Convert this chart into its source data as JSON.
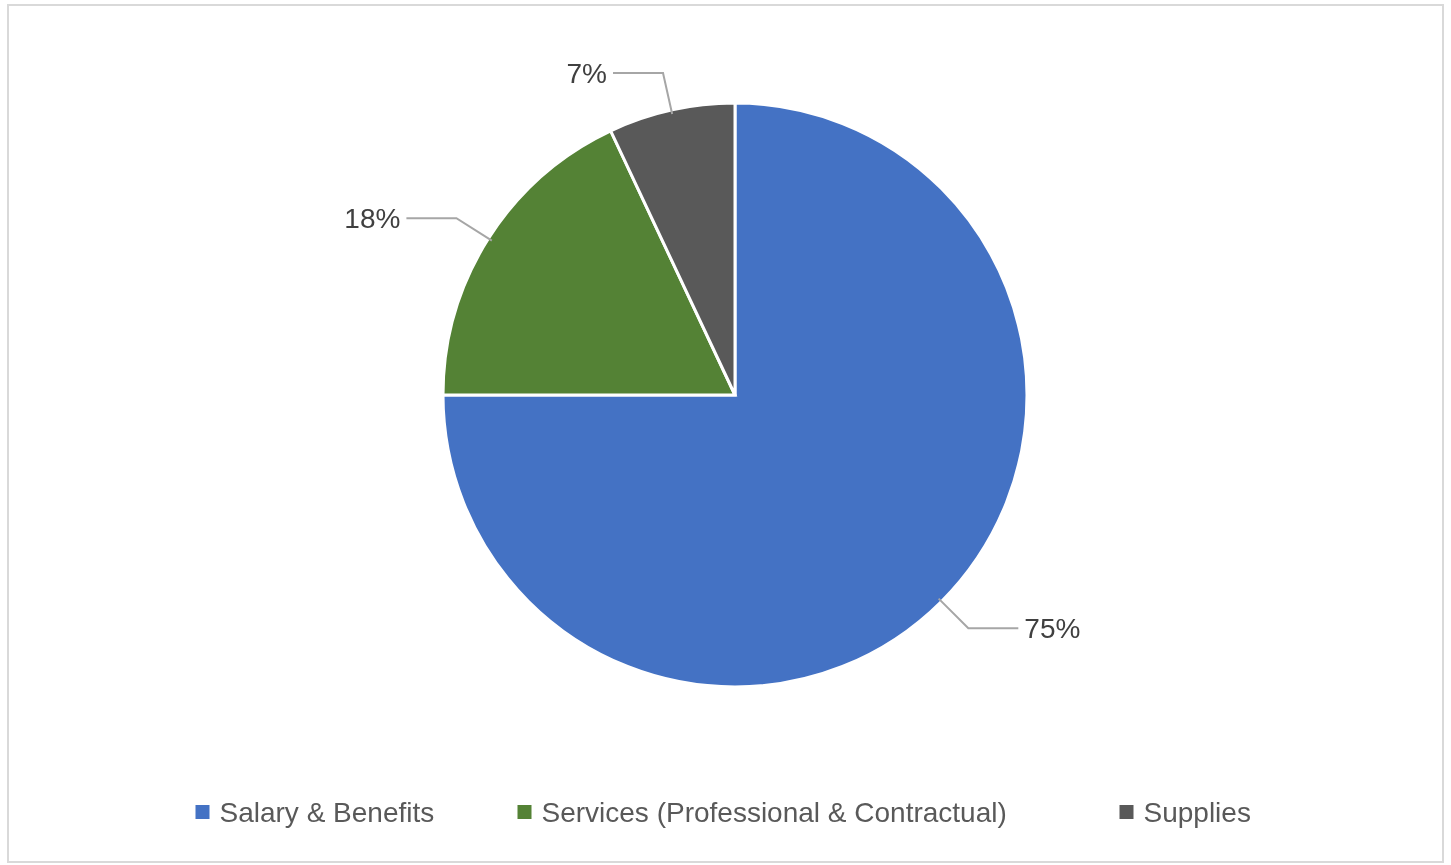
{
  "chart_data": {
    "type": "pie",
    "categories": [
      "Salary & Benefits",
      "Services (Professional & Contractual)",
      "Supplies"
    ],
    "values": [
      75,
      18,
      7
    ],
    "colors": [
      "#4472c4",
      "#548235",
      "#595959"
    ],
    "value_labels": [
      "75%",
      "18%",
      "7%"
    ],
    "legend": "bottom"
  }
}
